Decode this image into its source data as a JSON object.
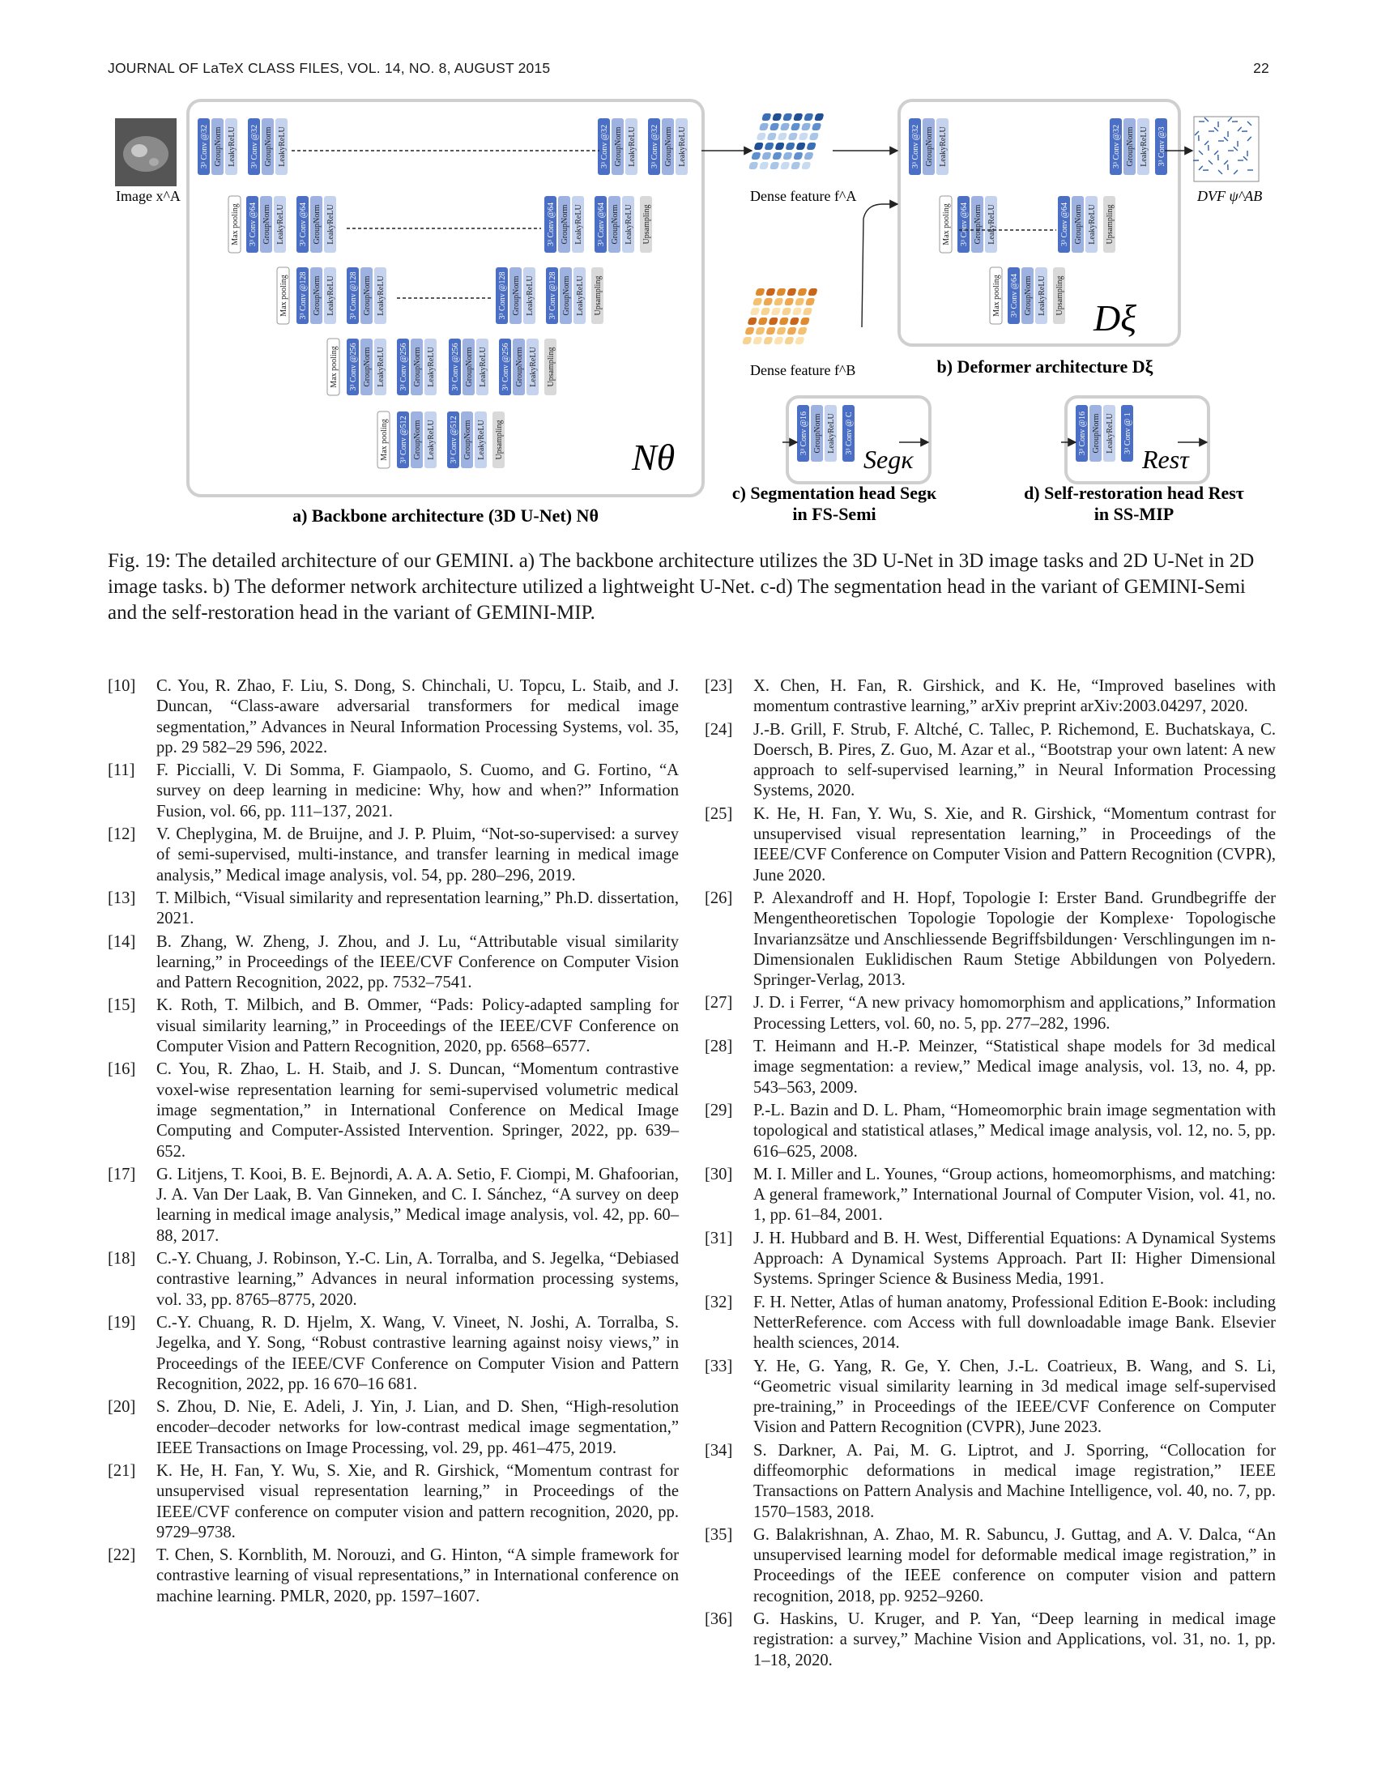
{
  "header": {
    "journal": "JOURNAL OF LaTeX CLASS FILES, VOL. 14, NO. 8, AUGUST 2015",
    "page": "22"
  },
  "figure": {
    "image_label": "Image x^A",
    "dense_a": "Dense feature f^A",
    "dense_b": "Dense feature f^B",
    "dvf": "DVF ψ^AB",
    "backbone_symbol": "Nθ",
    "deformer_symbol": "Dξ",
    "seg_symbol": "Segκ",
    "res_symbol": "Resτ",
    "label_a": "a) Backbone architecture (3D U-Net) Nθ",
    "label_b": "b) Deformer architecture Dξ",
    "label_c1": "c) Segmentation head Segκ",
    "label_c2": "in FS-Semi",
    "label_d1": "d) Self-restoration head Resτ",
    "label_d2": "in SS-MIP",
    "blocks": {
      "conv32": "3³ Conv @32",
      "conv64": "3³ Conv @64",
      "conv128": "3³ Conv @128",
      "conv256": "3³ Conv @256",
      "conv512": "3³ Conv @512",
      "conv16": "3³ Conv @16",
      "conv3": "3³ Conv @3",
      "convc": "3³ Conv @ C",
      "conv1": "3³ Conv @ 1",
      "gn": "GroupNorm",
      "relu": "LeakyReLU",
      "pool": "Max pooling",
      "up": "Upsampling"
    }
  },
  "caption": "Fig. 19: The detailed architecture of our GEMINI. a) The backbone architecture utilizes the 3D U-Net in 3D image tasks and 2D U-Net in 2D image tasks. b) The deformer network architecture utilized a lightweight U-Net. c-d) The segmentation head in the variant of GEMINI-Semi and the self-restoration head in the variant of GEMINI-MIP.",
  "references_left": [
    {
      "n": "[10]",
      "t": "C. You, R. Zhao, F. Liu, S. Dong, S. Chinchali, U. Topcu, L. Staib, and J. Duncan, “Class-aware adversarial transformers for medical image segmentation,” Advances in Neural Information Processing Systems, vol. 35, pp. 29 582–29 596, 2022."
    },
    {
      "n": "[11]",
      "t": "F. Piccialli, V. Di Somma, F. Giampaolo, S. Cuomo, and G. Fortino, “A survey on deep learning in medicine: Why, how and when?” Information Fusion, vol. 66, pp. 111–137, 2021."
    },
    {
      "n": "[12]",
      "t": "V. Cheplygina, M. de Bruijne, and J. P. Pluim, “Not-so-supervised: a survey of semi-supervised, multi-instance, and transfer learning in medical image analysis,” Medical image analysis, vol. 54, pp. 280–296, 2019."
    },
    {
      "n": "[13]",
      "t": "T. Milbich, “Visual similarity and representation learning,” Ph.D. dissertation, 2021."
    },
    {
      "n": "[14]",
      "t": "B. Zhang, W. Zheng, J. Zhou, and J. Lu, “Attributable visual similarity learning,” in Proceedings of the IEEE/CVF Conference on Computer Vision and Pattern Recognition, 2022, pp. 7532–7541."
    },
    {
      "n": "[15]",
      "t": "K. Roth, T. Milbich, and B. Ommer, “Pads: Policy-adapted sampling for visual similarity learning,” in Proceedings of the IEEE/CVF Conference on Computer Vision and Pattern Recognition, 2020, pp. 6568–6577."
    },
    {
      "n": "[16]",
      "t": "C. You, R. Zhao, L. H. Staib, and J. S. Duncan, “Momentum contrastive voxel-wise representation learning for semi-supervised volumetric medical image segmentation,” in International Conference on Medical Image Computing and Computer-Assisted Intervention. Springer, 2022, pp. 639–652."
    },
    {
      "n": "[17]",
      "t": "G. Litjens, T. Kooi, B. E. Bejnordi, A. A. A. Setio, F. Ciompi, M. Ghafoorian, J. A. Van Der Laak, B. Van Ginneken, and C. I. Sánchez, “A survey on deep learning in medical image analysis,” Medical image analysis, vol. 42, pp. 60–88, 2017."
    },
    {
      "n": "[18]",
      "t": "C.-Y. Chuang, J. Robinson, Y.-C. Lin, A. Torralba, and S. Jegelka, “Debiased contrastive learning,” Advances in neural information processing systems, vol. 33, pp. 8765–8775, 2020."
    },
    {
      "n": "[19]",
      "t": "C.-Y. Chuang, R. D. Hjelm, X. Wang, V. Vineet, N. Joshi, A. Torralba, S. Jegelka, and Y. Song, “Robust contrastive learning against noisy views,” in Proceedings of the IEEE/CVF Conference on Computer Vision and Pattern Recognition, 2022, pp. 16 670–16 681."
    },
    {
      "n": "[20]",
      "t": "S. Zhou, D. Nie, E. Adeli, J. Yin, J. Lian, and D. Shen, “High-resolution encoder–decoder networks for low-contrast medical image segmentation,” IEEE Transactions on Image Processing, vol. 29, pp. 461–475, 2019."
    },
    {
      "n": "[21]",
      "t": "K. He, H. Fan, Y. Wu, S. Xie, and R. Girshick, “Momentum contrast for unsupervised visual representation learning,” in Proceedings of the IEEE/CVF conference on computer vision and pattern recognition, 2020, pp. 9729–9738."
    },
    {
      "n": "[22]",
      "t": "T. Chen, S. Kornblith, M. Norouzi, and G. Hinton, “A simple framework for contrastive learning of visual representations,” in International conference on machine learning. PMLR, 2020, pp. 1597–1607."
    }
  ],
  "references_right": [
    {
      "n": "[23]",
      "t": "X. Chen, H. Fan, R. Girshick, and K. He, “Improved baselines with momentum contrastive learning,” arXiv preprint arXiv:2003.04297, 2020."
    },
    {
      "n": "[24]",
      "t": "J.-B. Grill, F. Strub, F. Altché, C. Tallec, P. Richemond, E. Buchatskaya, C. Doersch, B. Pires, Z. Guo, M. Azar et al., “Bootstrap your own latent: A new approach to self-supervised learning,” in Neural Information Processing Systems, 2020."
    },
    {
      "n": "[25]",
      "t": "K. He, H. Fan, Y. Wu, S. Xie, and R. Girshick, “Momentum contrast for unsupervised visual representation learning,” in Proceedings of the IEEE/CVF Conference on Computer Vision and Pattern Recognition (CVPR), June 2020."
    },
    {
      "n": "[26]",
      "t": "P. Alexandroff and H. Hopf, Topologie I: Erster Band. Grundbegriffe der Mengentheoretischen Topologie Topologie der Komplexe· Topologische Invarianzsätze und Anschliessende Begriffsbildungen· Verschlingungen im n-Dimensionalen Euklidischen Raum Stetige Abbildungen von Polyedern. Springer-Verlag, 2013."
    },
    {
      "n": "[27]",
      "t": "J. D. i Ferrer, “A new privacy homomorphism and applications,” Information Processing Letters, vol. 60, no. 5, pp. 277–282, 1996."
    },
    {
      "n": "[28]",
      "t": "T. Heimann and H.-P. Meinzer, “Statistical shape models for 3d medical image segmentation: a review,” Medical image analysis, vol. 13, no. 4, pp. 543–563, 2009."
    },
    {
      "n": "[29]",
      "t": "P.-L. Bazin and D. L. Pham, “Homeomorphic brain image segmentation with topological and statistical atlases,” Medical image analysis, vol. 12, no. 5, pp. 616–625, 2008."
    },
    {
      "n": "[30]",
      "t": "M. I. Miller and L. Younes, “Group actions, homeomorphisms, and matching: A general framework,” International Journal of Computer Vision, vol. 41, no. 1, pp. 61–84, 2001."
    },
    {
      "n": "[31]",
      "t": "J. H. Hubbard and B. H. West, Differential Equations: A Dynamical Systems Approach: A Dynamical Systems Approach. Part II: Higher Dimensional Systems. Springer Science & Business Media, 1991."
    },
    {
      "n": "[32]",
      "t": "F. H. Netter, Atlas of human anatomy, Professional Edition E-Book: including NetterReference. com Access with full downloadable image Bank. Elsevier health sciences, 2014."
    },
    {
      "n": "[33]",
      "t": "Y. He, G. Yang, R. Ge, Y. Chen, J.-L. Coatrieux, B. Wang, and S. Li, “Geometric visual similarity learning in 3d medical image self-supervised pre-training,” in Proceedings of the IEEE/CVF Conference on Computer Vision and Pattern Recognition (CVPR), June 2023."
    },
    {
      "n": "[34]",
      "t": "S. Darkner, A. Pai, M. G. Liptrot, and J. Sporring, “Collocation for diffeomorphic deformations in medical image registration,” IEEE Transactions on Pattern Analysis and Machine Intelligence, vol. 40, no. 7, pp. 1570–1583, 2018."
    },
    {
      "n": "[35]",
      "t": "G. Balakrishnan, A. Zhao, M. R. Sabuncu, J. Guttag, and A. V. Dalca, “An unsupervised learning model for deformable medical image registration,” in Proceedings of the IEEE conference on computer vision and pattern recognition, 2018, pp. 9252–9260."
    },
    {
      "n": "[36]",
      "t": "G. Haskins, U. Kruger, and P. Yan, “Deep learning in medical image registration: a survey,” Machine Vision and Applications, vol. 31, no. 1, pp. 1–18, 2020."
    }
  ]
}
